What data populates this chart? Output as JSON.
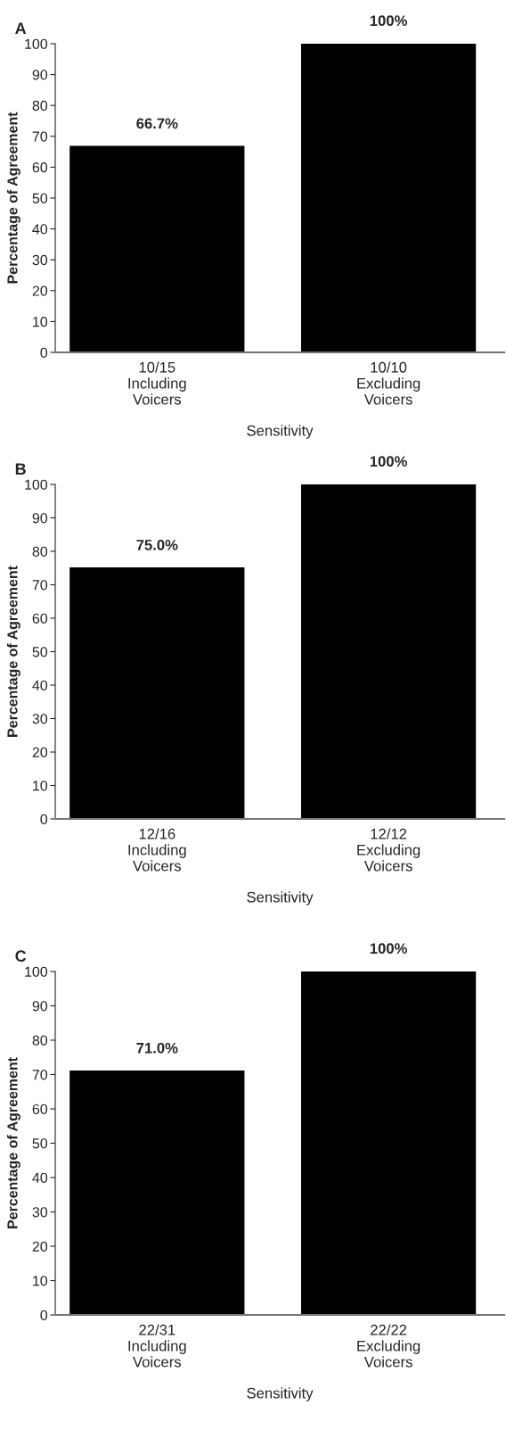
{
  "chart_data": [
    {
      "type": "bar",
      "title": "A",
      "ylabel": "Percentage of Agreement",
      "xlabel": "Sensitivity",
      "categories": [
        "10/15\nIncluding\nVoicers",
        "10/10\nExcluding\nVoicers"
      ],
      "values": [
        66.7,
        100
      ],
      "value_labels": [
        "66.7%",
        "100%"
      ],
      "color": "#000000",
      "ylim": [
        0,
        100
      ],
      "yticks": [
        0,
        10,
        20,
        30,
        40,
        50,
        60,
        70,
        80,
        90,
        100
      ],
      "grid": false,
      "legend": false
    },
    {
      "type": "bar",
      "title": "B",
      "ylabel": "Percentage of Agreement",
      "xlabel": "Sensitivity",
      "categories": [
        "12/16\nIncluding\nVoicers",
        "12/12\nExcluding\nVoicers"
      ],
      "values": [
        75.0,
        100
      ],
      "value_labels": [
        "75.0%",
        "100%"
      ],
      "color": "#000000",
      "ylim": [
        0,
        100
      ],
      "yticks": [
        0,
        10,
        20,
        30,
        40,
        50,
        60,
        70,
        80,
        90,
        100
      ],
      "grid": false,
      "legend": false
    },
    {
      "type": "bar",
      "title": "C",
      "ylabel": "Percentage of Agreement",
      "xlabel": "Sensitivity",
      "categories": [
        "22/31\nIncluding\nVoicers",
        "22/22\nExcluding\nVoicers"
      ],
      "values": [
        71.0,
        100
      ],
      "value_labels": [
        "71.0%",
        "100%"
      ],
      "color": "#000000",
      "ylim": [
        0,
        100
      ],
      "yticks": [
        0,
        10,
        20,
        30,
        40,
        50,
        60,
        70,
        80,
        90,
        100
      ],
      "grid": false,
      "legend": false
    }
  ]
}
